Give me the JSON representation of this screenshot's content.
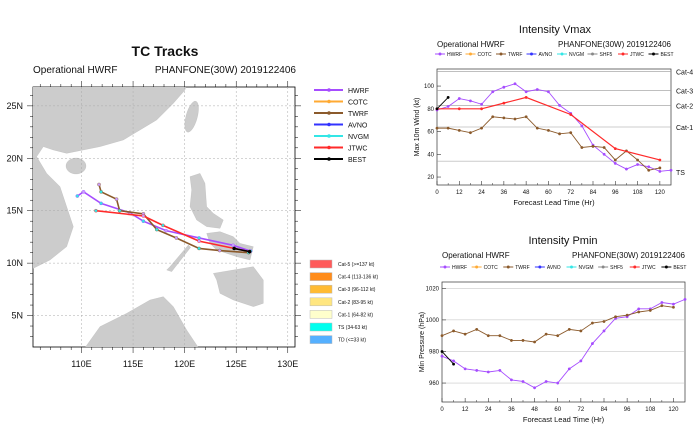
{
  "tracks": {
    "title": "TC Tracks",
    "subtitle_left": "Operational HWRF",
    "subtitle_right": "PHANFONE(30W) 2019122406",
    "lon_ticks": [
      "110E",
      "115E",
      "120E",
      "125E",
      "130E"
    ],
    "lat_ticks": [
      "25N",
      "20N",
      "15N",
      "10N",
      "5N"
    ],
    "legend": [
      {
        "name": "HWRF",
        "color": "#a64dff"
      },
      {
        "name": "COTC",
        "color": "#ffaa33"
      },
      {
        "name": "TWRF",
        "color": "#8b5a2b"
      },
      {
        "name": "AVNO",
        "color": "#3333ff"
      },
      {
        "name": "NVGM",
        "color": "#33e6e6"
      },
      {
        "name": "JTWC",
        "color": "#ff2a2a"
      },
      {
        "name": "BEST",
        "color": "#000000"
      }
    ],
    "category_legend": [
      {
        "label": "Cat-5 (>=137 kt)",
        "color": "#ff5a5a"
      },
      {
        "label": "Cat-4 (113-136 kt)",
        "color": "#ff8c1a"
      },
      {
        "label": "Cat-3 (96-112 kt)",
        "color": "#ffbb33"
      },
      {
        "label": "Cat-2 (83-95 kt)",
        "color": "#ffe680"
      },
      {
        "label": "Cat-1 (64-82 kt)",
        "color": "#ffffcc"
      },
      {
        "label": "TS (34-63 kt)",
        "color": "#00ffee"
      },
      {
        "label": "TD (<=33 kt)",
        "color": "#55b0ff"
      }
    ]
  },
  "chart_data": [
    {
      "type": "line",
      "title": "Tracks",
      "xlabel": "",
      "ylabel": "",
      "xlim": [
        105.3,
        130.7
      ],
      "ylim": [
        2,
        26.8
      ],
      "series": [
        {
          "name": "HWRF",
          "color": "#a64dff",
          "lon": [
            126.4,
            124.7,
            121.4,
            118.2,
            116.0,
            114.7,
            111.9,
            110.2,
            109.6
          ],
          "lat": [
            11.15,
            11.7,
            12.4,
            13.1,
            14.0,
            14.8,
            15.7,
            16.8,
            16.4
          ]
        },
        {
          "name": "TWRF",
          "color": "#8b5a2b",
          "lon": [
            126.2,
            123.4,
            121.4,
            119.2,
            117.3,
            116.0,
            113.7,
            113.4,
            111.9,
            111.7
          ],
          "lat": [
            11.0,
            11.2,
            11.4,
            12.4,
            13.2,
            14.7,
            15.0,
            16.1,
            16.8,
            17.5
          ]
        },
        {
          "name": "JTWC",
          "color": "#ff2a2a",
          "lon": [
            126.3,
            121.4,
            117.9,
            116.0,
            111.4
          ],
          "lat": [
            11.1,
            12.1,
            13.6,
            14.5,
            15.0
          ]
        },
        {
          "name": "BEST",
          "color": "#000000",
          "lon": [
            126.3,
            124.8
          ],
          "lat": [
            11.1,
            11.4
          ]
        }
      ]
    },
    {
      "type": "line",
      "title": "Intensity Vmax",
      "subtitle_left": "Operational HWRF",
      "subtitle_right": "PHANFONE(30W) 2019122406",
      "xlabel": "Forecast Lead Time (Hr)",
      "ylabel": "Max 10m Wind (kt)",
      "xlim": [
        0,
        126
      ],
      "ylim": [
        13,
        115
      ],
      "xticks": [
        0,
        12,
        24,
        36,
        48,
        60,
        72,
        84,
        96,
        108,
        120
      ],
      "yticks": [
        20,
        40,
        60,
        80,
        100
      ],
      "ref_lines": [
        {
          "label": "Cat-4",
          "value": 113
        },
        {
          "label": "Cat-3",
          "value": 96
        },
        {
          "label": "Cat-2",
          "value": 83
        },
        {
          "label": "Cat-1",
          "value": 64
        },
        {
          "label": "TS",
          "value": 34
        }
      ],
      "legend": [
        "HWRF",
        "COTC",
        "TWRF",
        "AVNO",
        "NVGM",
        "SHF5",
        "JTWC",
        "BEST"
      ],
      "series": [
        {
          "name": "HWRF",
          "color": "#a64dff",
          "x": [
            0,
            6,
            12,
            18,
            24,
            30,
            36,
            42,
            48,
            54,
            60,
            66,
            72,
            78,
            84,
            90,
            96,
            102,
            108,
            114,
            120,
            126
          ],
          "y": [
            79,
            82,
            89,
            87,
            84,
            95,
            99,
            102,
            95,
            97,
            95,
            83,
            76,
            65,
            48,
            40,
            32,
            27,
            31,
            29,
            25,
            26
          ]
        },
        {
          "name": "TWRF",
          "color": "#8b5a2b",
          "x": [
            0,
            6,
            12,
            18,
            24,
            30,
            36,
            42,
            48,
            54,
            60,
            66,
            72,
            78,
            84,
            90,
            96,
            102,
            108,
            114,
            120
          ],
          "y": [
            63,
            63,
            61,
            59,
            63,
            73,
            72,
            71,
            73,
            63,
            61,
            58,
            59,
            46,
            47,
            46,
            35,
            43,
            35,
            26,
            28
          ]
        },
        {
          "name": "JTWC",
          "color": "#ff2a2a",
          "x": [
            0,
            12,
            24,
            36,
            48,
            72,
            96,
            120
          ],
          "y": [
            80,
            80,
            80,
            85,
            90,
            75,
            45,
            35
          ]
        },
        {
          "name": "BEST",
          "color": "#000000",
          "x": [
            0,
            6
          ],
          "y": [
            80,
            90
          ]
        }
      ]
    },
    {
      "type": "line",
      "title": "Intensity Pmin",
      "subtitle_left": "Operational HWRF",
      "subtitle_right": "PHANFONE(30W) 2019122406",
      "xlabel": "Forecast Lead Time (Hr)",
      "ylabel": "Min Pressure (hPa)",
      "xlim": [
        0,
        126
      ],
      "ylim": [
        948,
        1024
      ],
      "xticks": [
        0,
        12,
        24,
        36,
        48,
        60,
        72,
        84,
        96,
        108,
        120
      ],
      "yticks": [
        960,
        980,
        1000,
        1020
      ],
      "legend": [
        "HWRF",
        "COTC",
        "TWRF",
        "AVNO",
        "NVGM",
        "SHF5",
        "JTWC",
        "BEST"
      ],
      "series": [
        {
          "name": "HWRF",
          "color": "#a64dff",
          "x": [
            0,
            6,
            12,
            18,
            24,
            30,
            36,
            42,
            48,
            54,
            60,
            66,
            72,
            78,
            84,
            90,
            96,
            102,
            108,
            114,
            120,
            126
          ],
          "y": [
            977,
            974,
            969,
            968,
            967,
            968,
            962,
            961,
            957,
            961,
            960,
            969,
            974,
            985,
            993,
            1001,
            1002,
            1007,
            1007,
            1011,
            1010,
            1013
          ]
        },
        {
          "name": "TWRF",
          "color": "#8b5a2b",
          "x": [
            0,
            6,
            12,
            18,
            24,
            30,
            36,
            42,
            48,
            54,
            60,
            66,
            72,
            78,
            84,
            90,
            96,
            102,
            108,
            114,
            120
          ],
          "y": [
            990,
            993,
            991,
            994,
            990,
            990,
            987,
            987,
            986,
            991,
            990,
            994,
            993,
            998,
            999,
            1002,
            1003,
            1005,
            1006,
            1009,
            1008
          ]
        },
        {
          "name": "BEST",
          "color": "#000000",
          "x": [
            0,
            6
          ],
          "y": [
            980,
            972
          ]
        }
      ]
    }
  ],
  "legend_colors": {
    "HWRF": "#a64dff",
    "COTC": "#ffaa33",
    "TWRF": "#8b5a2b",
    "AVNO": "#3333ff",
    "NVGM": "#33e6e6",
    "SHF5": "#888888",
    "JTWC": "#ff2a2a",
    "BEST": "#000000"
  }
}
